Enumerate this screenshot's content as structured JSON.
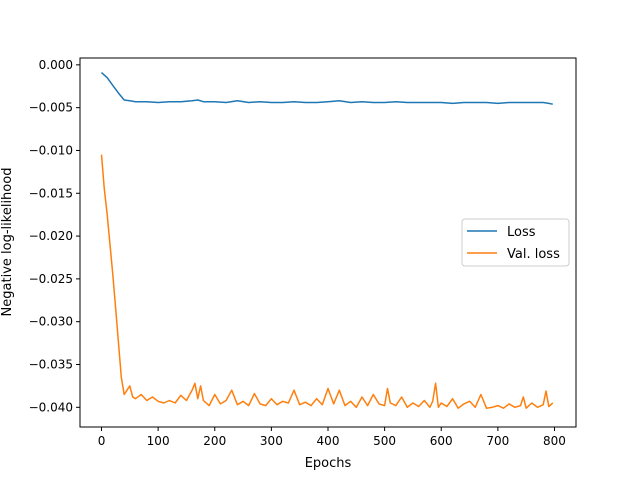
{
  "chart_data": {
    "type": "line",
    "xlabel": "Epochs",
    "ylabel": "Negative log-likelihood",
    "xlim": [
      -38,
      838
    ],
    "ylim": [
      -0.0423,
      0.0008
    ],
    "x_ticks": [
      0,
      100,
      200,
      300,
      400,
      500,
      600,
      700,
      800
    ],
    "y_ticks": [
      0.0,
      -0.005,
      -0.01,
      -0.015,
      -0.02,
      -0.025,
      -0.03,
      -0.035,
      -0.04
    ],
    "y_tick_labels": [
      "0.000",
      "−0.005",
      "−0.010",
      "−0.015",
      "−0.020",
      "−0.025",
      "−0.030",
      "−0.035",
      "−0.040"
    ],
    "legend": {
      "position": "center-right"
    },
    "grid": false,
    "series": [
      {
        "name": "Loss",
        "color": "#1f77b4",
        "points": [
          [
            0,
            -0.0009
          ],
          [
            10,
            -0.0015
          ],
          [
            20,
            -0.0024
          ],
          [
            30,
            -0.0033
          ],
          [
            40,
            -0.0041
          ],
          [
            50,
            -0.0042
          ],
          [
            60,
            -0.0043
          ],
          [
            80,
            -0.0043
          ],
          [
            100,
            -0.0044
          ],
          [
            120,
            -0.0043
          ],
          [
            140,
            -0.0043
          ],
          [
            160,
            -0.0042
          ],
          [
            170,
            -0.0041
          ],
          [
            180,
            -0.0043
          ],
          [
            200,
            -0.0043
          ],
          [
            220,
            -0.0044
          ],
          [
            240,
            -0.0042
          ],
          [
            260,
            -0.0044
          ],
          [
            280,
            -0.0043
          ],
          [
            300,
            -0.0044
          ],
          [
            320,
            -0.0044
          ],
          [
            340,
            -0.0043
          ],
          [
            360,
            -0.0044
          ],
          [
            380,
            -0.0044
          ],
          [
            400,
            -0.0043
          ],
          [
            420,
            -0.0042
          ],
          [
            440,
            -0.0044
          ],
          [
            460,
            -0.0043
          ],
          [
            480,
            -0.0044
          ],
          [
            500,
            -0.0044
          ],
          [
            520,
            -0.0043
          ],
          [
            540,
            -0.0044
          ],
          [
            560,
            -0.0044
          ],
          [
            580,
            -0.0044
          ],
          [
            600,
            -0.0044
          ],
          [
            620,
            -0.0045
          ],
          [
            640,
            -0.0044
          ],
          [
            660,
            -0.0044
          ],
          [
            680,
            -0.0044
          ],
          [
            700,
            -0.0045
          ],
          [
            720,
            -0.0044
          ],
          [
            740,
            -0.0044
          ],
          [
            760,
            -0.0044
          ],
          [
            780,
            -0.0044
          ],
          [
            790,
            -0.0045
          ],
          [
            797,
            -0.0046
          ]
        ]
      },
      {
        "name": "Val. loss",
        "color": "#ff7f0e",
        "points": [
          [
            0,
            -0.0105
          ],
          [
            5,
            -0.0145
          ],
          [
            10,
            -0.0175
          ],
          [
            15,
            -0.021
          ],
          [
            20,
            -0.0245
          ],
          [
            25,
            -0.0285
          ],
          [
            30,
            -0.0325
          ],
          [
            35,
            -0.0365
          ],
          [
            40,
            -0.0385
          ],
          [
            45,
            -0.038
          ],
          [
            50,
            -0.0375
          ],
          [
            55,
            -0.0388
          ],
          [
            60,
            -0.039
          ],
          [
            70,
            -0.0385
          ],
          [
            80,
            -0.0392
          ],
          [
            90,
            -0.0388
          ],
          [
            100,
            -0.0393
          ],
          [
            110,
            -0.0395
          ],
          [
            120,
            -0.0392
          ],
          [
            130,
            -0.0395
          ],
          [
            140,
            -0.0386
          ],
          [
            150,
            -0.0392
          ],
          [
            160,
            -0.038
          ],
          [
            165,
            -0.0372
          ],
          [
            170,
            -0.039
          ],
          [
            175,
            -0.0375
          ],
          [
            180,
            -0.0392
          ],
          [
            190,
            -0.0398
          ],
          [
            200,
            -0.0385
          ],
          [
            210,
            -0.0396
          ],
          [
            220,
            -0.0392
          ],
          [
            230,
            -0.038
          ],
          [
            240,
            -0.0397
          ],
          [
            250,
            -0.0393
          ],
          [
            260,
            -0.0398
          ],
          [
            270,
            -0.0384
          ],
          [
            280,
            -0.0396
          ],
          [
            290,
            -0.0398
          ],
          [
            300,
            -0.039
          ],
          [
            310,
            -0.0397
          ],
          [
            320,
            -0.0393
          ],
          [
            330,
            -0.0395
          ],
          [
            340,
            -0.038
          ],
          [
            350,
            -0.0397
          ],
          [
            360,
            -0.0394
          ],
          [
            370,
            -0.0398
          ],
          [
            380,
            -0.039
          ],
          [
            390,
            -0.0397
          ],
          [
            400,
            -0.0378
          ],
          [
            410,
            -0.0396
          ],
          [
            420,
            -0.038
          ],
          [
            430,
            -0.0398
          ],
          [
            440,
            -0.0393
          ],
          [
            450,
            -0.04
          ],
          [
            460,
            -0.0388
          ],
          [
            470,
            -0.0398
          ],
          [
            480,
            -0.0385
          ],
          [
            490,
            -0.0396
          ],
          [
            500,
            -0.0398
          ],
          [
            505,
            -0.0378
          ],
          [
            510,
            -0.0395
          ],
          [
            520,
            -0.0398
          ],
          [
            530,
            -0.0388
          ],
          [
            540,
            -0.04
          ],
          [
            550,
            -0.0395
          ],
          [
            560,
            -0.0399
          ],
          [
            570,
            -0.0392
          ],
          [
            580,
            -0.04
          ],
          [
            585,
            -0.0393
          ],
          [
            590,
            -0.0372
          ],
          [
            595,
            -0.04
          ],
          [
            600,
            -0.0395
          ],
          [
            610,
            -0.0399
          ],
          [
            620,
            -0.039
          ],
          [
            630,
            -0.0401
          ],
          [
            640,
            -0.0396
          ],
          [
            650,
            -0.0393
          ],
          [
            660,
            -0.04
          ],
          [
            670,
            -0.0385
          ],
          [
            680,
            -0.0401
          ],
          [
            690,
            -0.04
          ],
          [
            700,
            -0.0398
          ],
          [
            710,
            -0.0401
          ],
          [
            720,
            -0.0396
          ],
          [
            730,
            -0.04
          ],
          [
            740,
            -0.0398
          ],
          [
            745,
            -0.0388
          ],
          [
            750,
            -0.0401
          ],
          [
            760,
            -0.0395
          ],
          [
            770,
            -0.04
          ],
          [
            780,
            -0.0397
          ],
          [
            785,
            -0.0381
          ],
          [
            790,
            -0.0399
          ],
          [
            797,
            -0.0395
          ]
        ]
      }
    ]
  }
}
